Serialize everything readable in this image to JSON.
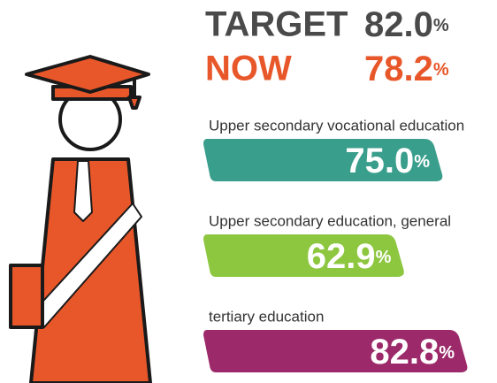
{
  "headline": [
    {
      "label": "TARGET",
      "text": "82.0%"
    },
    {
      "label": "NOW",
      "text": "78.2%"
    }
  ],
  "chart_data": {
    "type": "bar",
    "categories": [
      "Upper secondary vocational education",
      "Upper secondary education, general",
      "tertiary education"
    ],
    "values": [
      75.0,
      62.9,
      82.8
    ],
    "value_labels": [
      "75.0%",
      "62.9%",
      "82.8%"
    ],
    "colors": [
      "#3a9e8c",
      "#8dc63f",
      "#9c2a6a"
    ]
  }
}
